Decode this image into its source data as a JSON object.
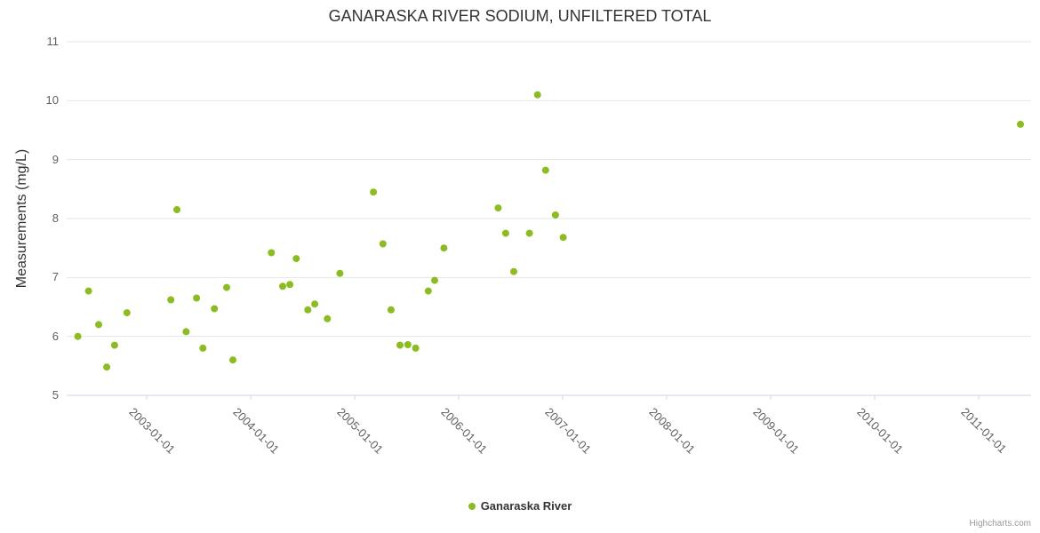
{
  "chart": {
    "credits": "Highcharts.com",
    "colors": {
      "marker": "#8bbc21",
      "grid": "#e6e6e6",
      "axis_line": "#ccd6eb",
      "tick_label": "#606060",
      "title": "#333333"
    }
  },
  "chart_data": {
    "type": "scatter",
    "title": "GANARASKA RIVER SODIUM, UNFILTERED TOTAL",
    "xlabel": "",
    "ylabel": "Measurements (mg/L)",
    "ylim": [
      5,
      11
    ],
    "yticks": [
      5,
      6,
      7,
      8,
      9,
      10,
      11
    ],
    "xticks": [
      "2003-01-01",
      "2004-01-01",
      "2005-01-01",
      "2006-01-01",
      "2007-01-01",
      "2008-01-01",
      "2009-01-01",
      "2010-01-01",
      "2011-01-01"
    ],
    "x_range_years": [
      2002.231,
      2011.504
    ],
    "grid": "horizontal",
    "legend_position": "bottom-center",
    "series": [
      {
        "name": "Ganaraska River",
        "color": "#8bbc21",
        "points": [
          {
            "date": "2002-05-03",
            "value": 6.0
          },
          {
            "date": "2002-06-10",
            "value": 6.77
          },
          {
            "date": "2002-07-15",
            "value": 6.2
          },
          {
            "date": "2002-08-13",
            "value": 5.48
          },
          {
            "date": "2002-09-10",
            "value": 5.85
          },
          {
            "date": "2002-10-23",
            "value": 6.4
          },
          {
            "date": "2003-03-25",
            "value": 6.62
          },
          {
            "date": "2003-04-16",
            "value": 8.15
          },
          {
            "date": "2003-05-18",
            "value": 6.08
          },
          {
            "date": "2003-06-24",
            "value": 6.65
          },
          {
            "date": "2003-07-16",
            "value": 5.8
          },
          {
            "date": "2003-08-26",
            "value": 6.47
          },
          {
            "date": "2003-10-08",
            "value": 6.83
          },
          {
            "date": "2003-10-30",
            "value": 5.6
          },
          {
            "date": "2004-03-13",
            "value": 7.42
          },
          {
            "date": "2004-04-22",
            "value": 6.85
          },
          {
            "date": "2004-05-17",
            "value": 6.88
          },
          {
            "date": "2004-06-09",
            "value": 7.32
          },
          {
            "date": "2004-07-19",
            "value": 6.45
          },
          {
            "date": "2004-08-13",
            "value": 6.55
          },
          {
            "date": "2004-09-27",
            "value": 6.3
          },
          {
            "date": "2004-11-10",
            "value": 7.07
          },
          {
            "date": "2005-03-06",
            "value": 8.45
          },
          {
            "date": "2005-04-09",
            "value": 7.57
          },
          {
            "date": "2005-05-07",
            "value": 6.45
          },
          {
            "date": "2005-06-08",
            "value": 5.85
          },
          {
            "date": "2005-07-05",
            "value": 5.86
          },
          {
            "date": "2005-08-02",
            "value": 5.8
          },
          {
            "date": "2005-09-16",
            "value": 6.77
          },
          {
            "date": "2005-10-08",
            "value": 6.95
          },
          {
            "date": "2005-11-10",
            "value": 7.5
          },
          {
            "date": "2006-05-18",
            "value": 8.18
          },
          {
            "date": "2006-06-14",
            "value": 7.75
          },
          {
            "date": "2006-07-12",
            "value": 7.1
          },
          {
            "date": "2006-09-06",
            "value": 7.75
          },
          {
            "date": "2006-10-04",
            "value": 10.1
          },
          {
            "date": "2006-11-02",
            "value": 8.82
          },
          {
            "date": "2006-12-06",
            "value": 8.06
          },
          {
            "date": "2007-01-03",
            "value": 7.68
          },
          {
            "date": "2011-05-26",
            "value": 9.6
          }
        ]
      }
    ]
  }
}
